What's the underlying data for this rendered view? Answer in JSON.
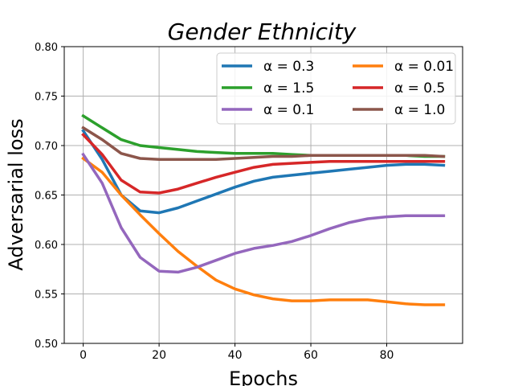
{
  "chart_data": {
    "type": "line",
    "title": "Gender Ethnicity",
    "xlabel": "Epochs",
    "ylabel": "Adversarial loss",
    "xlim": [
      -5,
      100
    ],
    "ylim": [
      0.5,
      0.8
    ],
    "x_ticks": [
      0,
      20,
      40,
      60,
      80
    ],
    "x_tick_labels": [
      "0",
      "20",
      "40",
      "60",
      "80"
    ],
    "y_ticks": [
      0.5,
      0.55,
      0.6,
      0.65,
      0.7,
      0.75,
      0.8
    ],
    "y_tick_labels": [
      "0.50",
      "0.55",
      "0.60",
      "0.65",
      "0.70",
      "0.75",
      "0.80"
    ],
    "grid": true,
    "legend_position": "top-right",
    "x": [
      0,
      5,
      10,
      15,
      20,
      25,
      30,
      35,
      40,
      45,
      50,
      55,
      60,
      65,
      70,
      75,
      80,
      85,
      90,
      95
    ],
    "series": [
      {
        "name": "α = 0.3",
        "color": "#1f77b4",
        "values": [
          0.715,
          0.686,
          0.65,
          0.634,
          0.632,
          0.637,
          0.644,
          0.651,
          0.658,
          0.664,
          0.668,
          0.67,
          0.672,
          0.674,
          0.676,
          0.678,
          0.68,
          0.681,
          0.681,
          0.68
        ]
      },
      {
        "name": "α = 0.01",
        "color": "#ff7f0e",
        "values": [
          0.687,
          0.673,
          0.65,
          0.63,
          0.611,
          0.593,
          0.578,
          0.564,
          0.555,
          0.549,
          0.545,
          0.543,
          0.543,
          0.544,
          0.544,
          0.544,
          0.542,
          0.54,
          0.539,
          0.539
        ]
      },
      {
        "name": "α = 1.5",
        "color": "#2ca02c",
        "values": [
          0.73,
          0.718,
          0.706,
          0.7,
          0.698,
          0.696,
          0.694,
          0.693,
          0.692,
          0.692,
          0.692,
          0.691,
          0.69,
          0.69,
          0.69,
          0.69,
          0.69,
          0.69,
          0.689,
          0.689
        ]
      },
      {
        "name": "α = 0.5",
        "color": "#d62728",
        "values": [
          0.711,
          0.691,
          0.665,
          0.653,
          0.652,
          0.656,
          0.662,
          0.668,
          0.673,
          0.678,
          0.681,
          0.682,
          0.683,
          0.684,
          0.684,
          0.684,
          0.684,
          0.684,
          0.684,
          0.684
        ]
      },
      {
        "name": "α = 0.1",
        "color": "#9467bd",
        "values": [
          0.691,
          0.662,
          0.617,
          0.587,
          0.573,
          0.572,
          0.577,
          0.584,
          0.591,
          0.596,
          0.599,
          0.603,
          0.609,
          0.616,
          0.622,
          0.626,
          0.628,
          0.629,
          0.629,
          0.629
        ]
      },
      {
        "name": "α = 1.0",
        "color": "#8c564b",
        "values": [
          0.718,
          0.706,
          0.692,
          0.687,
          0.686,
          0.686,
          0.686,
          0.686,
          0.687,
          0.688,
          0.689,
          0.689,
          0.69,
          0.69,
          0.69,
          0.69,
          0.69,
          0.69,
          0.69,
          0.689
        ]
      }
    ]
  }
}
